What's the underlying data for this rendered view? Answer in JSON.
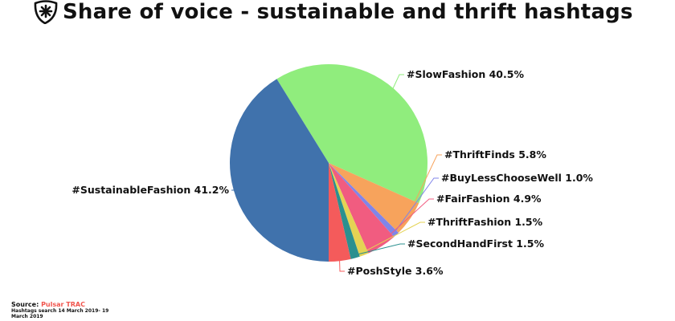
{
  "title": "Share of voice - sustainable and thrift hashtags",
  "logo_icon": "asterisk-shield-icon",
  "source": {
    "label": "Source:",
    "name": "Pulsar TRAC",
    "name_color": "#f0544c",
    "note": "Hashtags search 14 March 2019- 19 March 2019"
  },
  "chart_data": {
    "type": "pie",
    "title": "Share of voice - sustainable and thrift hashtags",
    "unit": "%",
    "slices": [
      {
        "label": "#SlowFashion",
        "value": 40.5,
        "color": "#90ed7d"
      },
      {
        "label": "#ThriftFinds",
        "value": 5.8,
        "color": "#f7a35c"
      },
      {
        "label": "#BuyLessChooseWell",
        "value": 1.0,
        "color": "#8085e9"
      },
      {
        "label": "#FairFashion",
        "value": 4.9,
        "color": "#f15c80"
      },
      {
        "label": "#ThriftFashion",
        "value": 1.5,
        "color": "#e4d354"
      },
      {
        "label": "#SecondHandFirst",
        "value": 1.5,
        "color": "#2b908f"
      },
      {
        "label": "#PoshStyle",
        "value": 3.6,
        "color": "#f45b5b"
      },
      {
        "label": "#SustainableFashion",
        "value": 41.2,
        "color": "#4072ac"
      }
    ]
  }
}
